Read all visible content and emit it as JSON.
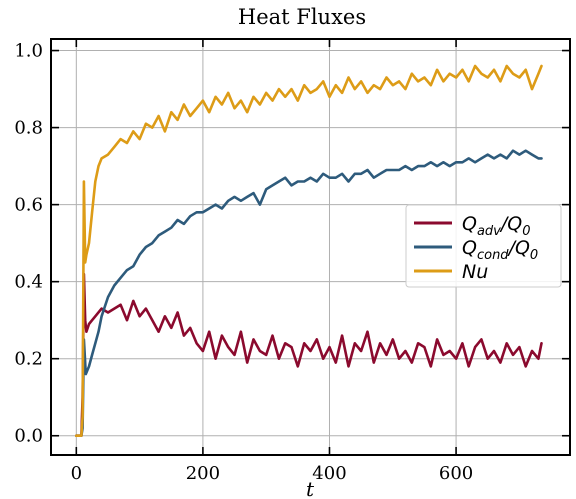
{
  "chart_data": {
    "type": "line",
    "title": "Heat Fluxes",
    "xlabel": "t",
    "ylabel": "",
    "xlim": [
      -40,
      780
    ],
    "ylim": [
      -0.05,
      1.03
    ],
    "xticks": [
      0,
      200,
      400,
      600
    ],
    "yticks": [
      0.0,
      0.2,
      0.4,
      0.6,
      0.8,
      1.0
    ],
    "xtick_labels": [
      "0",
      "200",
      "400",
      "600"
    ],
    "ytick_labels": [
      "0.0",
      "0.2",
      "0.4",
      "0.6",
      "0.8",
      "1.0"
    ],
    "grid": true,
    "legend_position": "center-right",
    "series": [
      {
        "name": "Q_adv/Q_0",
        "legend": {
          "base": "Q",
          "sub": "adv",
          "mid": "/Q",
          "sub2": "0"
        },
        "color": "#8b0a2e",
        "x": [
          0,
          8,
          10,
          12,
          14,
          16,
          20,
          25,
          30,
          40,
          50,
          60,
          70,
          80,
          90,
          100,
          110,
          120,
          130,
          140,
          150,
          160,
          170,
          180,
          190,
          200,
          210,
          220,
          230,
          240,
          250,
          260,
          270,
          280,
          290,
          300,
          310,
          320,
          330,
          340,
          350,
          360,
          370,
          380,
          390,
          400,
          410,
          420,
          430,
          440,
          450,
          460,
          470,
          480,
          490,
          500,
          510,
          520,
          530,
          540,
          550,
          560,
          570,
          580,
          590,
          600,
          610,
          620,
          630,
          640,
          650,
          660,
          670,
          680,
          690,
          700,
          710,
          720,
          730,
          735
        ],
        "values": [
          0.0,
          0.0,
          0.1,
          0.42,
          0.3,
          0.27,
          0.29,
          0.3,
          0.31,
          0.33,
          0.32,
          0.33,
          0.34,
          0.3,
          0.35,
          0.31,
          0.33,
          0.3,
          0.27,
          0.31,
          0.28,
          0.32,
          0.26,
          0.28,
          0.24,
          0.22,
          0.27,
          0.2,
          0.26,
          0.23,
          0.21,
          0.27,
          0.19,
          0.25,
          0.22,
          0.21,
          0.26,
          0.2,
          0.24,
          0.23,
          0.18,
          0.24,
          0.22,
          0.25,
          0.2,
          0.23,
          0.19,
          0.26,
          0.18,
          0.24,
          0.22,
          0.27,
          0.19,
          0.24,
          0.21,
          0.25,
          0.2,
          0.22,
          0.19,
          0.24,
          0.23,
          0.18,
          0.25,
          0.21,
          0.22,
          0.2,
          0.24,
          0.18,
          0.23,
          0.25,
          0.2,
          0.22,
          0.19,
          0.24,
          0.21,
          0.23,
          0.18,
          0.22,
          0.2,
          0.24
        ]
      },
      {
        "name": "Q_cond/Q_0",
        "legend": {
          "base": "Q",
          "sub": "cond",
          "mid": "/Q",
          "sub2": "0"
        },
        "color": "#2e5b7c",
        "x": [
          0,
          8,
          10,
          12,
          15,
          20,
          25,
          30,
          35,
          40,
          50,
          60,
          70,
          80,
          90,
          100,
          110,
          120,
          130,
          140,
          150,
          160,
          170,
          180,
          190,
          200,
          210,
          220,
          230,
          240,
          250,
          260,
          270,
          280,
          290,
          300,
          310,
          320,
          330,
          340,
          350,
          360,
          370,
          380,
          390,
          400,
          410,
          420,
          430,
          440,
          450,
          460,
          470,
          480,
          490,
          500,
          510,
          520,
          530,
          540,
          550,
          560,
          570,
          580,
          590,
          600,
          610,
          620,
          630,
          640,
          650,
          660,
          670,
          680,
          690,
          700,
          710,
          720,
          730,
          735
        ],
        "values": [
          0.0,
          0.0,
          0.02,
          0.25,
          0.16,
          0.18,
          0.21,
          0.24,
          0.27,
          0.31,
          0.36,
          0.39,
          0.41,
          0.43,
          0.44,
          0.47,
          0.49,
          0.5,
          0.52,
          0.53,
          0.54,
          0.56,
          0.55,
          0.57,
          0.58,
          0.58,
          0.59,
          0.6,
          0.59,
          0.61,
          0.62,
          0.61,
          0.62,
          0.63,
          0.6,
          0.64,
          0.65,
          0.66,
          0.67,
          0.65,
          0.66,
          0.66,
          0.67,
          0.66,
          0.68,
          0.67,
          0.67,
          0.68,
          0.66,
          0.68,
          0.68,
          0.69,
          0.67,
          0.68,
          0.69,
          0.69,
          0.69,
          0.7,
          0.69,
          0.7,
          0.7,
          0.71,
          0.7,
          0.71,
          0.7,
          0.71,
          0.71,
          0.72,
          0.71,
          0.72,
          0.73,
          0.72,
          0.73,
          0.72,
          0.74,
          0.73,
          0.74,
          0.73,
          0.72,
          0.72
        ]
      },
      {
        "name": "Nu",
        "legend": {
          "base": "Nu",
          "sub": "",
          "mid": "",
          "sub2": ""
        },
        "color": "#dd9c17",
        "x": [
          0,
          8,
          10,
          12,
          14,
          16,
          20,
          25,
          30,
          35,
          40,
          50,
          60,
          70,
          80,
          90,
          100,
          110,
          120,
          130,
          140,
          150,
          160,
          170,
          180,
          190,
          200,
          210,
          220,
          230,
          240,
          250,
          260,
          270,
          280,
          290,
          300,
          310,
          320,
          330,
          340,
          350,
          360,
          370,
          380,
          390,
          400,
          410,
          420,
          430,
          440,
          450,
          460,
          470,
          480,
          490,
          500,
          510,
          520,
          530,
          540,
          550,
          560,
          570,
          580,
          590,
          600,
          610,
          620,
          630,
          640,
          650,
          660,
          670,
          680,
          690,
          700,
          710,
          720,
          730,
          735
        ],
        "values": [
          0.0,
          0.0,
          0.05,
          0.66,
          0.45,
          0.47,
          0.5,
          0.58,
          0.66,
          0.7,
          0.72,
          0.73,
          0.75,
          0.77,
          0.76,
          0.79,
          0.77,
          0.81,
          0.8,
          0.83,
          0.79,
          0.84,
          0.82,
          0.86,
          0.83,
          0.85,
          0.87,
          0.84,
          0.88,
          0.86,
          0.89,
          0.85,
          0.87,
          0.84,
          0.88,
          0.86,
          0.89,
          0.87,
          0.9,
          0.88,
          0.9,
          0.87,
          0.91,
          0.89,
          0.9,
          0.92,
          0.88,
          0.91,
          0.89,
          0.93,
          0.9,
          0.92,
          0.89,
          0.91,
          0.9,
          0.93,
          0.91,
          0.92,
          0.9,
          0.94,
          0.92,
          0.93,
          0.91,
          0.95,
          0.92,
          0.94,
          0.93,
          0.95,
          0.92,
          0.96,
          0.94,
          0.93,
          0.95,
          0.92,
          0.96,
          0.94,
          0.93,
          0.95,
          0.9,
          0.94,
          0.96
        ]
      }
    ]
  }
}
